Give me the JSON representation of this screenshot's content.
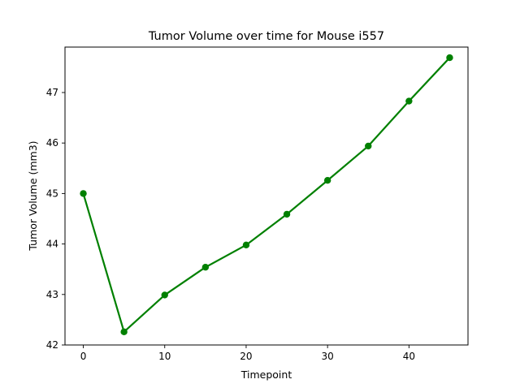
{
  "chart_data": {
    "type": "line",
    "title": "Tumor Volume over time for Mouse i557",
    "xlabel": "Timepoint",
    "ylabel": "Tumor Volume (mm3)",
    "xlim": [
      -2.25,
      47.25
    ],
    "ylim": [
      42.0,
      47.9
    ],
    "xticks": [
      0,
      10,
      20,
      30,
      40
    ],
    "yticks": [
      42,
      43,
      44,
      45,
      46,
      47
    ],
    "grid": false,
    "series": [
      {
        "color": "#008000",
        "marker": "circle",
        "x": [
          0,
          5,
          10,
          15,
          20,
          25,
          30,
          35,
          40,
          45
        ],
        "y": [
          45.0,
          42.26,
          42.99,
          43.54,
          43.98,
          44.59,
          45.26,
          45.94,
          46.83,
          47.69
        ]
      }
    ]
  }
}
